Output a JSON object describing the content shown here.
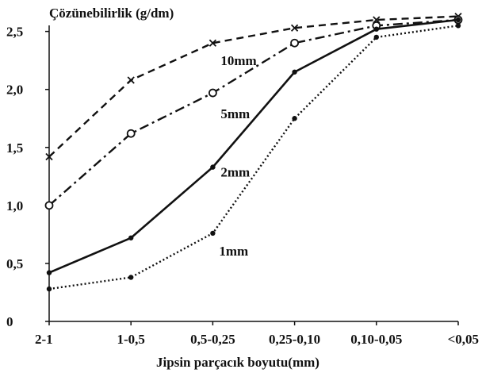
{
  "chart_data": {
    "type": "line",
    "ylabel": "Çözünebilirlik (g/dm)",
    "xlabel": "Jipsin parçacık boyutu(mm)",
    "categories": [
      "2-1",
      "1-0,5",
      "0,5-0,25",
      "0,25-0,10",
      "0,10-0,05",
      "<0,05"
    ],
    "ylim": [
      0,
      2.6
    ],
    "y_ticks": [
      {
        "value": 0,
        "label": "0"
      },
      {
        "value": 0.5,
        "label": "0,5"
      },
      {
        "value": 1.0,
        "label": "1,0"
      },
      {
        "value": 1.5,
        "label": "1,5"
      },
      {
        "value": 2.0,
        "label": "2,0"
      },
      {
        "value": 2.5,
        "label": "2,5"
      }
    ],
    "grid": false,
    "legend": "inline labels",
    "series": [
      {
        "name": "10mm",
        "values": [
          1.42,
          2.08,
          2.4,
          2.53,
          2.6,
          2.63
        ],
        "dash": "9,6",
        "marker": "x",
        "color": "#111111",
        "label_at": 2
      },
      {
        "name": "5mm",
        "values": [
          1.0,
          1.62,
          1.97,
          2.4,
          2.55,
          2.6
        ],
        "dash": "12,5,3,5",
        "marker": "circle",
        "color": "#111111",
        "label_at": 2
      },
      {
        "name": "2mm",
        "values": [
          0.42,
          0.72,
          1.33,
          2.15,
          2.52,
          2.6
        ],
        "dash": "",
        "marker": "dot",
        "color": "#111111",
        "label_at": 2
      },
      {
        "name": "1mm",
        "values": [
          0.28,
          0.38,
          0.76,
          1.75,
          2.45,
          2.55
        ],
        "dash": "2,3",
        "marker": "dot",
        "color": "#111111",
        "label_at": 2
      }
    ]
  }
}
